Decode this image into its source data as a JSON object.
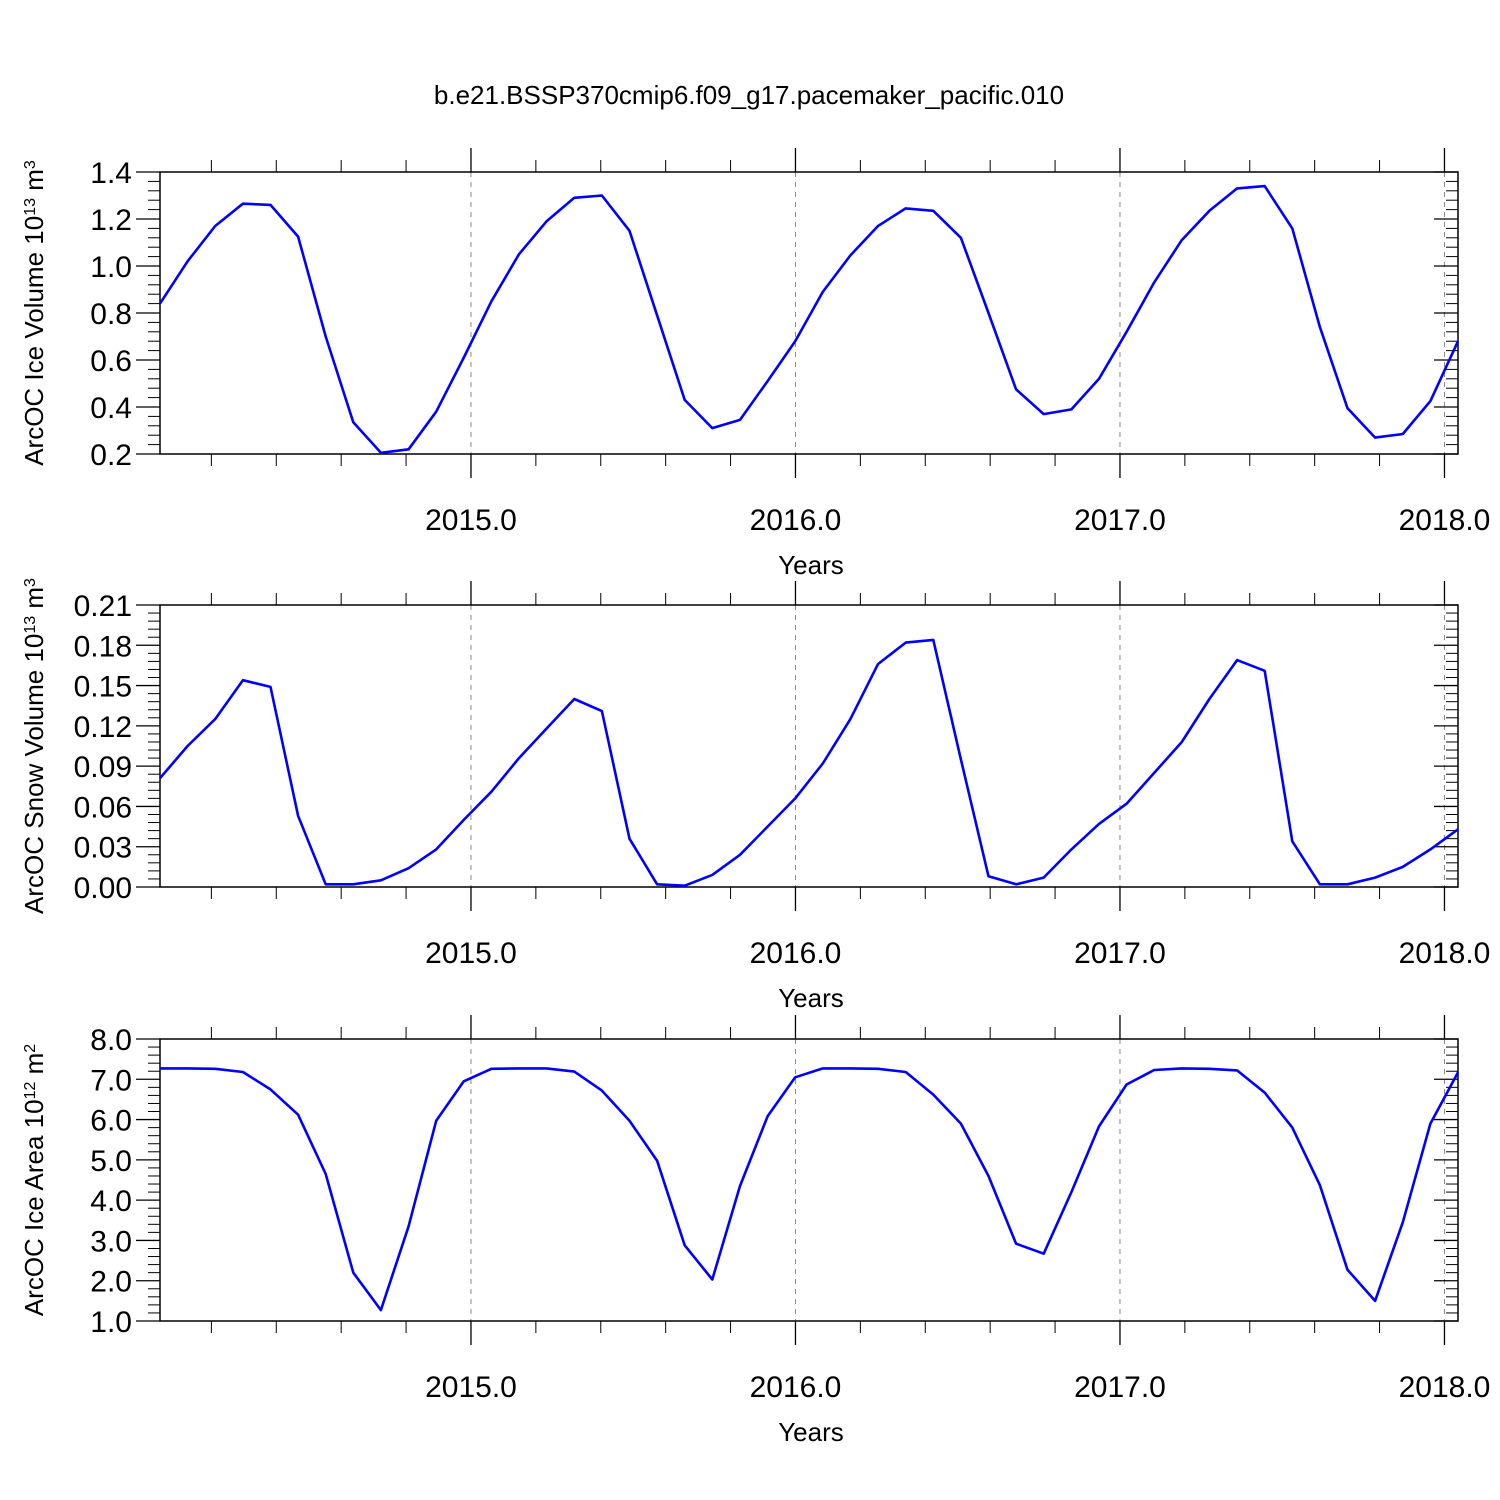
{
  "figure": {
    "title": "b.e21.BSSP370cmip6.f09_g17.pacemaker_pacific.010"
  },
  "colors": {
    "series": "#0000ff",
    "axis": "#000000",
    "gridline": "#888888"
  },
  "chart_data": [
    {
      "type": "line",
      "ylabel_main": "ArcOC Ice Volume 10",
      "ylabel_exp": "13",
      "ylabel_unit": " m",
      "ylabel_unit_exp": "3",
      "xlabel": "Years",
      "ylim": [
        0.2,
        1.4
      ],
      "yticks": [
        "0.2",
        "0.4",
        "0.6",
        "0.8",
        "1.0",
        "1.2",
        "1.4"
      ],
      "ytick_values": [
        0.2,
        0.4,
        0.6,
        0.8,
        1.0,
        1.2,
        1.4
      ],
      "xlim": [
        2014.0417,
        2018.0417
      ],
      "xticks": [
        "2015.0",
        "2016.0",
        "2017.0",
        "2018.0"
      ],
      "xtick_values": [
        2015.0,
        2016.0,
        2017.0,
        2018.0
      ],
      "grid": "vertical dashed at major x ticks",
      "series": [
        {
          "values": [
            0.84,
            1.02,
            1.17,
            1.265,
            1.26,
            1.125,
            0.7,
            0.335,
            0.205,
            0.22,
            0.38,
            0.61,
            0.85,
            1.05,
            1.19,
            1.29,
            1.3,
            1.15,
            0.79,
            0.43,
            0.31,
            0.345,
            0.51,
            0.68,
            0.89,
            1.045,
            1.17,
            1.245,
            1.235,
            1.12,
            0.8,
            0.475,
            0.37,
            0.39,
            0.52,
            0.72,
            0.93,
            1.11,
            1.235,
            1.33,
            1.34,
            1.16,
            0.74,
            0.395,
            0.27,
            0.285,
            0.425,
            0.68
          ]
        }
      ]
    },
    {
      "type": "line",
      "ylabel_main": "ArcOC Snow Volume 10",
      "ylabel_exp": "13",
      "ylabel_unit": " m",
      "ylabel_unit_exp": "3",
      "xlabel": "Years",
      "ylim": [
        0.0,
        0.21
      ],
      "yticks": [
        "0.00",
        "0.03",
        "0.06",
        "0.09",
        "0.12",
        "0.15",
        "0.18",
        "0.21"
      ],
      "ytick_values": [
        0.0,
        0.03,
        0.06,
        0.09,
        0.12,
        0.15,
        0.18,
        0.21
      ],
      "xlim": [
        2014.0417,
        2018.0417
      ],
      "xticks": [
        "2015.0",
        "2016.0",
        "2017.0",
        "2018.0"
      ],
      "xtick_values": [
        2015.0,
        2016.0,
        2017.0,
        2018.0
      ],
      "grid": "vertical dashed at major x ticks",
      "series": [
        {
          "values": [
            0.081,
            0.105,
            0.125,
            0.154,
            0.149,
            0.053,
            0.002,
            0.002,
            0.005,
            0.014,
            0.028,
            0.05,
            0.071,
            0.096,
            0.118,
            0.14,
            0.131,
            0.036,
            0.002,
            0.001,
            0.009,
            0.024,
            0.045,
            0.066,
            0.092,
            0.125,
            0.166,
            0.182,
            0.184,
            0.095,
            0.008,
            0.002,
            0.007,
            0.028,
            0.047,
            0.062,
            0.085,
            0.108,
            0.14,
            0.169,
            0.161,
            0.034,
            0.002,
            0.002,
            0.007,
            0.015,
            0.028,
            0.043
          ]
        }
      ]
    },
    {
      "type": "line",
      "ylabel_main": "ArcOC Ice Area 10",
      "ylabel_exp": "12",
      "ylabel_unit": " m",
      "ylabel_unit_exp": "2",
      "xlabel": "Years",
      "ylim": [
        1.0,
        8.0
      ],
      "yticks": [
        "1.0",
        "2.0",
        "3.0",
        "4.0",
        "5.0",
        "6.0",
        "7.0",
        "8.0"
      ],
      "ytick_values": [
        1.0,
        2.0,
        3.0,
        4.0,
        5.0,
        6.0,
        7.0,
        8.0
      ],
      "xlim": [
        2014.0417,
        2018.0417
      ],
      "xticks": [
        "2015.0",
        "2016.0",
        "2017.0",
        "2018.0"
      ],
      "xtick_values": [
        2015.0,
        2016.0,
        2017.0,
        2018.0
      ],
      "grid": "vertical dashed at major x ticks",
      "series": [
        {
          "values": [
            7.27,
            7.27,
            7.26,
            7.18,
            6.75,
            6.12,
            4.65,
            2.2,
            1.27,
            3.35,
            5.97,
            6.95,
            7.26,
            7.27,
            7.27,
            7.19,
            6.72,
            5.97,
            4.98,
            2.88,
            2.03,
            4.35,
            6.08,
            7.05,
            7.27,
            7.27,
            7.26,
            7.18,
            6.62,
            5.9,
            4.6,
            2.92,
            2.67,
            4.2,
            5.83,
            6.87,
            7.23,
            7.27,
            7.26,
            7.22,
            6.67,
            5.8,
            4.37,
            2.27,
            1.5,
            3.45,
            5.9,
            7.17
          ]
        }
      ]
    }
  ]
}
